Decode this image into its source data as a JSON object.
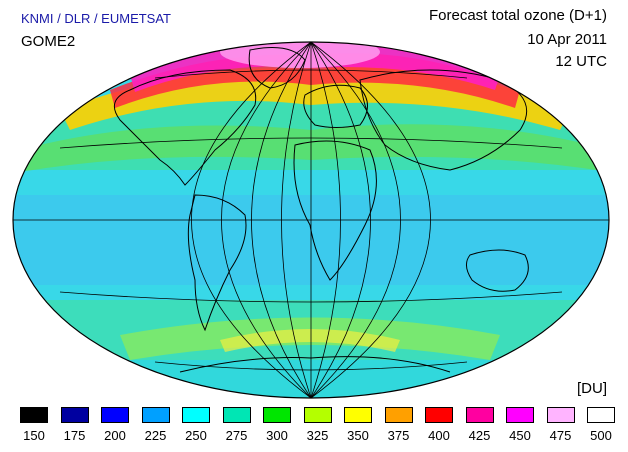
{
  "header": {
    "credit": "KNMI / DLR / EUMETSAT",
    "instrument": "GOME2",
    "title": "Forecast total ozone (D+1)",
    "date": "10 Apr 2011",
    "time": "12 UTC"
  },
  "legend": {
    "unit": "[DU]",
    "items": [
      {
        "label": "150",
        "color": "#000000"
      },
      {
        "label": "175",
        "color": "#0000a0"
      },
      {
        "label": "200",
        "color": "#0000ff"
      },
      {
        "label": "225",
        "color": "#00a0ff"
      },
      {
        "label": "250",
        "color": "#00ffff"
      },
      {
        "label": "275",
        "color": "#00e6b4"
      },
      {
        "label": "300",
        "color": "#00e600"
      },
      {
        "label": "325",
        "color": "#b4ff00"
      },
      {
        "label": "350",
        "color": "#ffff00"
      },
      {
        "label": "375",
        "color": "#ffa000"
      },
      {
        "label": "400",
        "color": "#ff0000"
      },
      {
        "label": "425",
        "color": "#ff00a0"
      },
      {
        "label": "450",
        "color": "#ff00ff"
      },
      {
        "label": "475",
        "color": "#ffb4ff"
      },
      {
        "label": "500",
        "color": "#ffffff"
      }
    ]
  }
}
